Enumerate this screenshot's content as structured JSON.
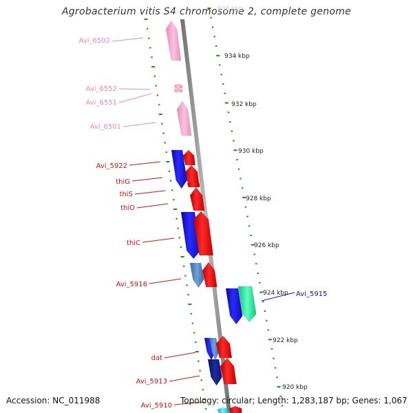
{
  "title": "Agrobacterium vitis S4 chromosome 2, complete genome",
  "footer": {
    "accession_label": "Accession: ",
    "accession": "NC_011988",
    "topology_label": "Topology: ",
    "topology": "circular",
    "length_label": "; Length: ",
    "length": "1,283,187 bp",
    "genes_label": "; Genes: ",
    "genes": "1,067"
  },
  "colors": {
    "background": "#ffffff",
    "backbone": "#8f8f8f",
    "tick": "#1f8a1f",
    "gene_label_red": "#cc1111",
    "gene_label_pink": "#e688b0",
    "gene_label_blue": "#1111aa",
    "gene_red": "#ff1a1a",
    "gene_blue": "#1a1aee",
    "gene_steelblue": "#4f83c0",
    "gene_navy": "#101c86",
    "gene_pink": "#f7a7cf",
    "gene_green": "#33f0a4",
    "gene_cyan": "#00e8ff",
    "coordinate_text": "#222222"
  },
  "coordinates": [
    {
      "label": "936 kbp",
      "faded": true
    },
    {
      "label": "934 kbp"
    },
    {
      "label": "932 kbp"
    },
    {
      "label": "930 kbp"
    },
    {
      "label": "928 kbp"
    },
    {
      "label": "926 kbp"
    },
    {
      "label": "924 kbp"
    },
    {
      "label": "922 kbp"
    },
    {
      "label": "920 kbp"
    }
  ],
  "gene_labels": [
    {
      "text": "Avi_6502",
      "color": "pink"
    },
    {
      "text": "Avi_6552",
      "color": "pink"
    },
    {
      "text": "Avi_6551",
      "color": "pink"
    },
    {
      "text": "Avi_6501",
      "color": "pink"
    },
    {
      "text": "Avi_5922",
      "color": "red"
    },
    {
      "text": "thiG",
      "color": "red"
    },
    {
      "text": "thiS",
      "color": "red"
    },
    {
      "text": "thiO",
      "color": "red"
    },
    {
      "text": "thiC",
      "color": "red"
    },
    {
      "text": "Avi_5916",
      "color": "red"
    },
    {
      "text": "Avi_5915",
      "color": "blue"
    },
    {
      "text": "dat",
      "color": "red"
    },
    {
      "text": "Avi_5913",
      "color": "red"
    },
    {
      "text": "Avi_5910",
      "color": "red"
    }
  ],
  "genes": [
    {
      "name": "Avi_6502",
      "color": "pink"
    },
    {
      "name": "Avi_6552",
      "color": "pink"
    },
    {
      "name": "Avi_6551",
      "color": "pink"
    },
    {
      "name": "Avi_6501",
      "color": "pink"
    },
    {
      "name": "Avi_5922",
      "color": "blue"
    },
    {
      "name": "Avi_5922-red",
      "color": "red"
    },
    {
      "name": "thiG",
      "color": "red"
    },
    {
      "name": "thiS",
      "color": "red"
    },
    {
      "name": "thiO",
      "color": "red"
    },
    {
      "name": "thiC-blue",
      "color": "blue"
    },
    {
      "name": "thiC",
      "color": "red"
    },
    {
      "name": "Avi_5916-steel",
      "color": "steelblue"
    },
    {
      "name": "Avi_5916",
      "color": "red"
    },
    {
      "name": "Avi_5915-blue",
      "color": "blue"
    },
    {
      "name": "Avi_5915",
      "color": "green"
    },
    {
      "name": "dat-blue",
      "color": "blue"
    },
    {
      "name": "dat-steel",
      "color": "steelblue"
    },
    {
      "name": "dat",
      "color": "red"
    },
    {
      "name": "Avi_5913-navy",
      "color": "navy"
    },
    {
      "name": "Avi_5913",
      "color": "red"
    },
    {
      "name": "Avi_5910-cyan",
      "color": "cyan"
    },
    {
      "name": "Avi_5910",
      "color": "red"
    }
  ]
}
